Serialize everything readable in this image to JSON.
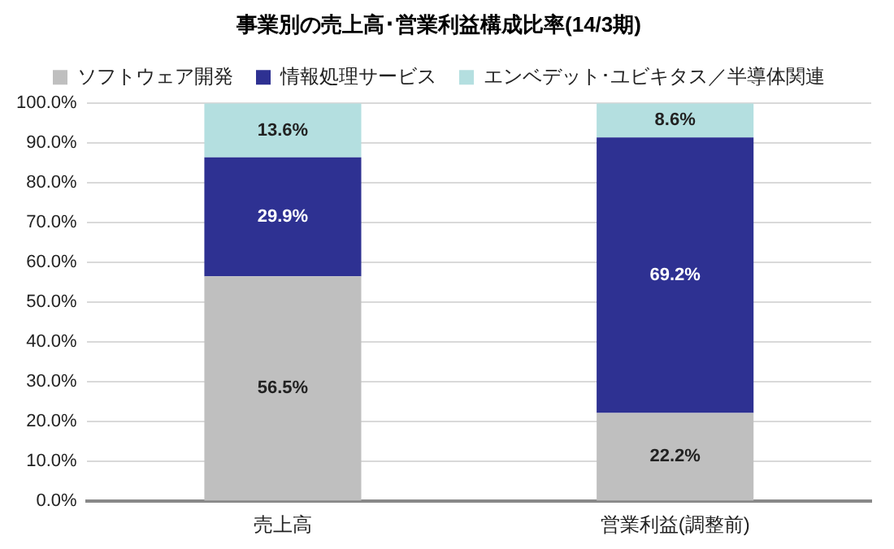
{
  "chart_data": {
    "type": "bar",
    "title": "事業別の売上高･営業利益構成比率(14/3期)",
    "categories": [
      "売上高",
      "営業利益(調整前)"
    ],
    "stacked": true,
    "legend": "top",
    "grid": "y",
    "ylim": [
      0,
      100
    ],
    "yticks": [
      {
        "value": 0,
        "label": "0.0%"
      },
      {
        "value": 10,
        "label": "10.0%"
      },
      {
        "value": 20,
        "label": "20.0%"
      },
      {
        "value": 30,
        "label": "30.0%"
      },
      {
        "value": 40,
        "label": "40.0%"
      },
      {
        "value": 50,
        "label": "50.0%"
      },
      {
        "value": 60,
        "label": "60.0%"
      },
      {
        "value": 70,
        "label": "70.0%"
      },
      {
        "value": 80,
        "label": "80.0%"
      },
      {
        "value": 90,
        "label": "90.0%"
      },
      {
        "value": 100,
        "label": "100.0%"
      }
    ],
    "series": [
      {
        "name": "ソフトウェア開発",
        "color": "#bfbfbf",
        "values": [
          56.5,
          22.2
        ],
        "value_labels": [
          "56.5%",
          "22.2%"
        ]
      },
      {
        "name": "情報処理サービス",
        "color": "#2e3192",
        "values": [
          29.9,
          69.2
        ],
        "value_labels": [
          "29.9%",
          "69.2%"
        ]
      },
      {
        "name": "エンベデット･ユビキタス／半導体関連",
        "color": "#b4dfe0",
        "values": [
          13.6,
          8.6
        ],
        "value_labels": [
          "13.6%",
          "8.6%"
        ]
      }
    ]
  }
}
